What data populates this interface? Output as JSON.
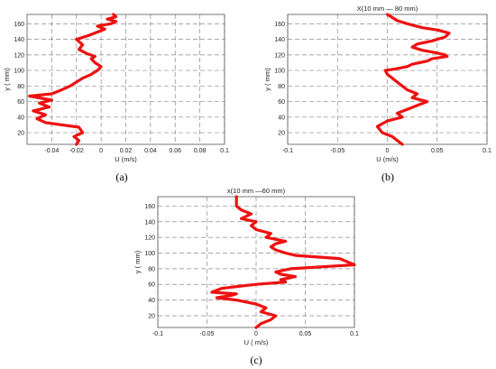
{
  "chart_data": [
    {
      "type": "line",
      "title": "",
      "caption": "(a)",
      "xlabel": "U (m/s)",
      "ylabel": "y ( mm)",
      "xlim": [
        -0.06,
        0.1
      ],
      "ylim": [
        5,
        172
      ],
      "xticks": [
        -0.04,
        -0.02,
        0,
        0.02,
        0.04,
        0.06,
        0.08,
        0.1
      ],
      "xtick_labels": [
        "-0.04",
        "-0.02",
        "0",
        "0.02",
        "0.04",
        "0.06",
        "0.08",
        "0.1"
      ],
      "yticks": [
        20,
        40,
        60,
        80,
        100,
        120,
        140,
        160
      ],
      "ytick_labels": [
        "20",
        "40",
        "60",
        "80",
        "100",
        "120",
        "140",
        "160"
      ],
      "grid": true,
      "series": [
        {
          "color": "#ee1111",
          "x": [
            -0.02,
            -0.018,
            -0.022,
            -0.015,
            -0.018,
            -0.045,
            -0.052,
            -0.045,
            -0.055,
            -0.042,
            -0.05,
            -0.04,
            -0.058,
            -0.04,
            -0.032,
            -0.025,
            -0.02,
            -0.015,
            -0.008,
            -0.003,
            0.0,
            -0.005,
            -0.008,
            -0.005,
            -0.012,
            -0.018,
            -0.015,
            -0.02,
            -0.01,
            -0.002,
            0.003,
            -0.003,
            0.008,
            0.012,
            0.005,
            0.012,
            0.01
          ],
          "y": [
            5,
            10,
            15,
            20,
            27,
            33,
            38,
            43,
            48,
            53,
            58,
            62,
            67,
            70,
            75,
            80,
            85,
            90,
            95,
            100,
            105,
            110,
            115,
            118,
            122,
            127,
            133,
            140,
            145,
            150,
            153,
            157,
            160,
            163,
            166,
            169,
            172
          ]
        }
      ]
    },
    {
      "type": "line",
      "title": "X(10 mm — 80 mm)",
      "caption": "(b)",
      "xlabel": "U (m/s)",
      "ylabel": "y ( mm)",
      "xlim": [
        -0.1,
        0.1
      ],
      "ylim": [
        5,
        172
      ],
      "xticks": [
        -0.1,
        -0.05,
        0,
        0.05,
        0.1
      ],
      "xtick_labels": [
        "-0.1",
        "-0.05",
        "0",
        "0.05",
        "0.1"
      ],
      "yticks": [
        20,
        40,
        60,
        80,
        100,
        120,
        140,
        160
      ],
      "ytick_labels": [
        "20",
        "40",
        "60",
        "80",
        "100",
        "120",
        "140",
        "160"
      ],
      "grid": true,
      "series": [
        {
          "color": "#ee1111",
          "x": [
            0.015,
            0.01,
            0.005,
            -0.005,
            -0.01,
            0.0,
            0.015,
            0.01,
            0.02,
            0.03,
            0.04,
            0.025,
            0.03,
            0.02,
            0.01,
            0.0,
            -0.002,
            0.008,
            0.02,
            0.025,
            0.032,
            0.04,
            0.045,
            0.06,
            0.058,
            0.048,
            0.035,
            0.025,
            0.03,
            0.045,
            0.058,
            0.062,
            0.05,
            0.035,
            0.02,
            0.01,
            0.005,
            0.0
          ],
          "y": [
            5,
            10,
            15,
            20,
            28,
            35,
            40,
            45,
            50,
            55,
            60,
            65,
            70,
            75,
            85,
            95,
            100,
            102,
            105,
            108,
            110,
            112,
            115,
            118,
            120,
            123,
            126,
            130,
            134,
            138,
            143,
            148,
            152,
            155,
            160,
            164,
            168,
            172
          ]
        }
      ]
    },
    {
      "type": "line",
      "title": "x(10 mm —60 mm)",
      "caption": "(c)",
      "xlabel": "U ( m/s)",
      "ylabel": "y ( mm)",
      "xlim": [
        -0.1,
        0.1
      ],
      "ylim": [
        5,
        172
      ],
      "xticks": [
        -0.1,
        -0.05,
        0,
        0.05,
        0.1
      ],
      "xtick_labels": [
        "-0.1",
        "-0.05",
        "0",
        "0.05",
        "0.1"
      ],
      "yticks": [
        20,
        40,
        60,
        80,
        100,
        120,
        140,
        160
      ],
      "ytick_labels": [
        "20",
        "40",
        "60",
        "80",
        "100",
        "120",
        "140",
        "160"
      ],
      "grid": true,
      "series": [
        {
          "color": "#ee1111",
          "x": [
            0.0,
            0.005,
            0.015,
            0.02,
            0.005,
            0.01,
            0.0,
            -0.02,
            -0.04,
            -0.025,
            -0.02,
            -0.045,
            -0.035,
            0.0,
            0.03,
            0.025,
            0.04,
            0.025,
            0.02,
            0.035,
            0.1,
            0.085,
            0.04,
            0.03,
            0.02,
            0.015,
            0.02,
            0.03,
            0.01,
            0.015,
            0.0,
            -0.005,
            0.0,
            -0.015,
            -0.005,
            -0.015,
            -0.02,
            -0.02
          ],
          "y": [
            5,
            10,
            15,
            20,
            25,
            30,
            35,
            40,
            43,
            46,
            48,
            50,
            55,
            60,
            63,
            66,
            70,
            73,
            76,
            80,
            85,
            93,
            97,
            100,
            104,
            108,
            112,
            115,
            120,
            125,
            130,
            135,
            140,
            144,
            150,
            155,
            160,
            172
          ]
        }
      ]
    }
  ]
}
